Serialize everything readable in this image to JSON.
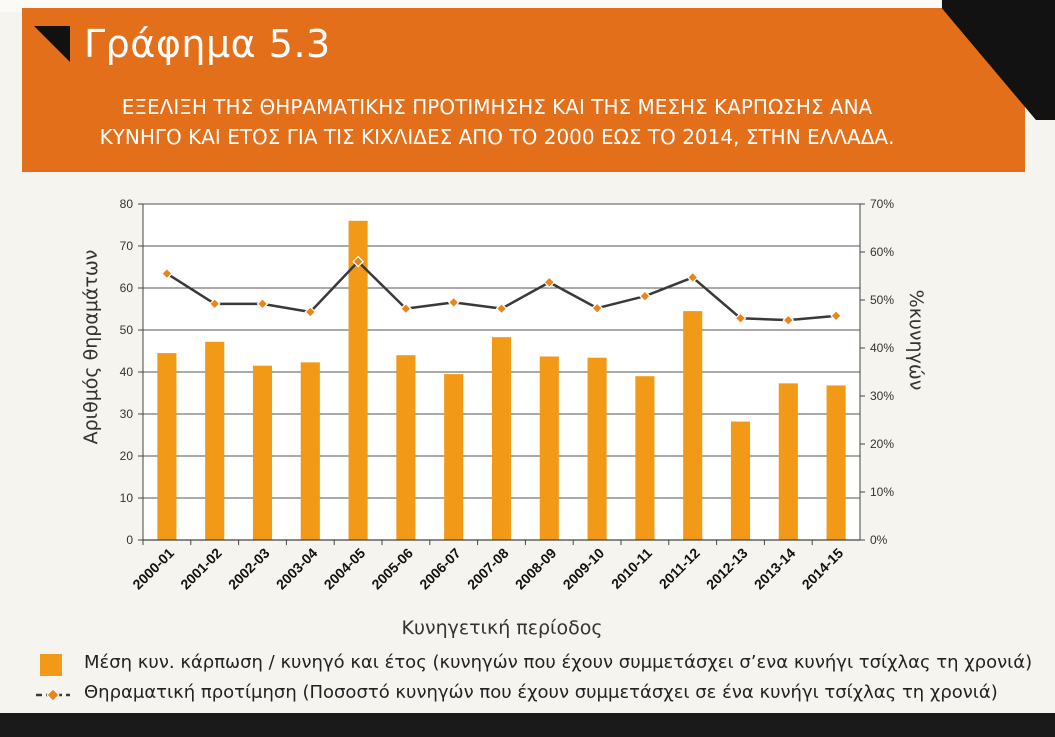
{
  "header": {
    "title": "Γράφημα 5.3",
    "subtitle_line1": "ΕΞΕΛΙΞΗ ΤΗΣ ΘΗΡΑΜΑΤΙΚΗΣ ΠΡΟΤΙΜΗΣΗΣ ΚΑΙ ΤΗΣ ΜΕΣΗΣ ΚΑΡΠΩΣΗΣ ΑΝΑ",
    "subtitle_line2": "ΚΥΝΗΓΟ ΚΑΙ ΕΤΟΣ ΓΙΑ ΤΙΣ ΚΙΧΛΙΔΕΣ ΑΠΟ ΤΟ 2000 ΕΩΣ ΤΟ 2014, ΣΤΗΝ ΕΛΛΑΔΑ."
  },
  "colors": {
    "banner": "#e46f1b",
    "bar": "#f29a17",
    "line": "#3a3a3a",
    "marker": "#e8861c"
  },
  "chart_data": {
    "type": "bar",
    "xlabel": "Κυνηγετική περίοδος",
    "ylabel": "Αριθμός θηραμάτων",
    "y2label": "%κυνηγών",
    "ylim": [
      0,
      80
    ],
    "y2lim": [
      0,
      70
    ],
    "yticks": [
      "0",
      "10",
      "20",
      "30",
      "40",
      "50",
      "60",
      "70",
      "80"
    ],
    "y2ticks": [
      "0%",
      "10%",
      "20%",
      "30%",
      "40%",
      "50%",
      "60%",
      "70%"
    ],
    "grid": true,
    "legend_position": "bottom",
    "categories": [
      "2000-01",
      "2001-02",
      "2002-03",
      "2003-04",
      "2004-05",
      "2005-06",
      "2006-07",
      "2007-08",
      "2008-09",
      "2009-10",
      "2010-11",
      "2011-12",
      "2012-13",
      "2013-14",
      "2014-15"
    ],
    "series": [
      {
        "name": "Μέση κυν. κάρπωση / κυνηγό και έτος (κυνηγών που έχουν συμμετάσχει σ’ενα κυνήγι τσίχλας τη χρονιά)",
        "type": "bar",
        "axis": "left",
        "values": [
          44.5,
          47.2,
          41.5,
          42.3,
          76,
          44,
          39.5,
          48.3,
          43.7,
          43.4,
          39,
          54.5,
          28.2,
          37.3,
          36.8
        ]
      },
      {
        "name": "Θηραματική προτίμηση (Ποσοστό κυνηγών που έχουν συμμετάσχει σε ένα κυνήγι τσίχλας τη χρονιά)",
        "type": "line",
        "axis": "right",
        "unit": "%",
        "values": [
          55.5,
          49.2,
          49.2,
          47.5,
          58,
          48.2,
          49.5,
          48.2,
          53.7,
          48.3,
          50.8,
          54.7,
          46.2,
          45.8,
          46.7
        ]
      }
    ]
  }
}
